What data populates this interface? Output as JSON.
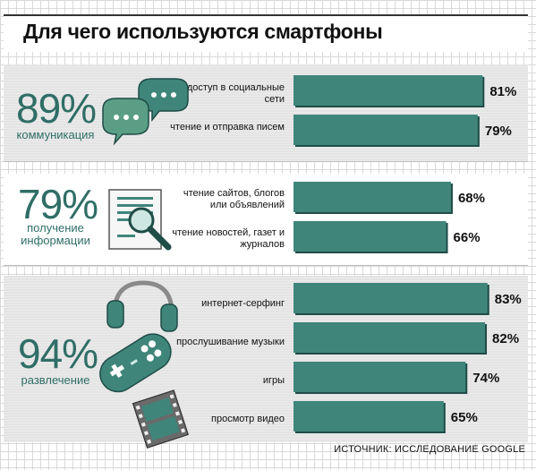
{
  "title": "Для чего используются смартфоны",
  "source": "ИСТОЧНИК: ИССЛЕДОВАНИЕ GOOGLE",
  "colors": {
    "accent": "#2f6e66",
    "bar": "#3f857a",
    "bar_edge": "#1f4d47"
  },
  "groups": [
    {
      "percent": "89%",
      "label": "коммуникация",
      "icon": "speech-bubbles-icon"
    },
    {
      "percent": "79%",
      "label": "получение информации",
      "icon": "document-magnifier-icon"
    },
    {
      "percent": "94%",
      "label": "развлечение",
      "icon": "headphones-gamepad-film-icon"
    }
  ],
  "chart_data": {
    "type": "bar",
    "orientation": "horizontal",
    "categories": [
      "доступ в социальные сети",
      "чтение и отправка писем",
      "чтение сайтов, блогов или объявлений",
      "чтение новостей, газет и журналов",
      "интернет-серфинг",
      "прослушивание музыки",
      "игры",
      "просмотр видео"
    ],
    "values": [
      81,
      79,
      68,
      66,
      83,
      82,
      74,
      65
    ],
    "value_labels": [
      "81%",
      "79%",
      "68%",
      "66%",
      "83%",
      "82%",
      "74%",
      "65%"
    ],
    "group_index": [
      0,
      0,
      1,
      1,
      2,
      2,
      2,
      2
    ]
  }
}
